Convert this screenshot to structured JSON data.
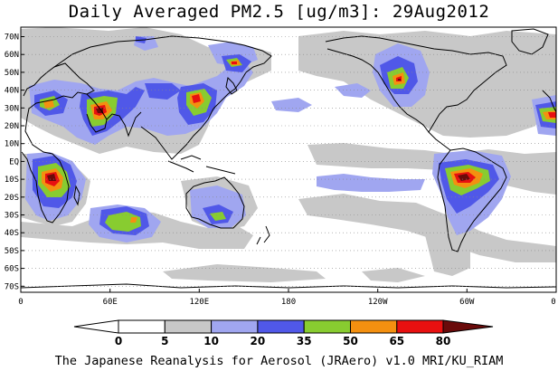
{
  "title": "Daily Averaged PM2.5 [ug/m3]: 29Aug2012",
  "footer": "The Japanese Reanalysis for Aerosol (JRAero) v1.0 MRI/KU_RIAM",
  "lat_labels": [
    "70N",
    "60N",
    "50N",
    "40N",
    "30N",
    "20N",
    "10N",
    "EQ",
    "10S",
    "20S",
    "30S",
    "40S",
    "50S",
    "60S",
    "70S"
  ],
  "lon_labels": [
    "0",
    "60E",
    "120E",
    "180",
    "120W",
    "60W",
    "0"
  ],
  "colorbar": {
    "levels": [
      "0",
      "5",
      "10",
      "20",
      "35",
      "50",
      "65",
      "80"
    ],
    "colors": [
      "#ffffff",
      "#c8c8c8",
      "#a0a6f0",
      "#5058e8",
      "#88cc30",
      "#f49010",
      "#e81010",
      "#6a0a0a"
    ]
  },
  "shading_colors": {
    "light": "#c8c8c8",
    "lavender": "#a0a6f0",
    "blue": "#5058e8",
    "green": "#88cc30",
    "orange": "#f49010",
    "red": "#e81010",
    "maroon": "#6a0a0a"
  }
}
